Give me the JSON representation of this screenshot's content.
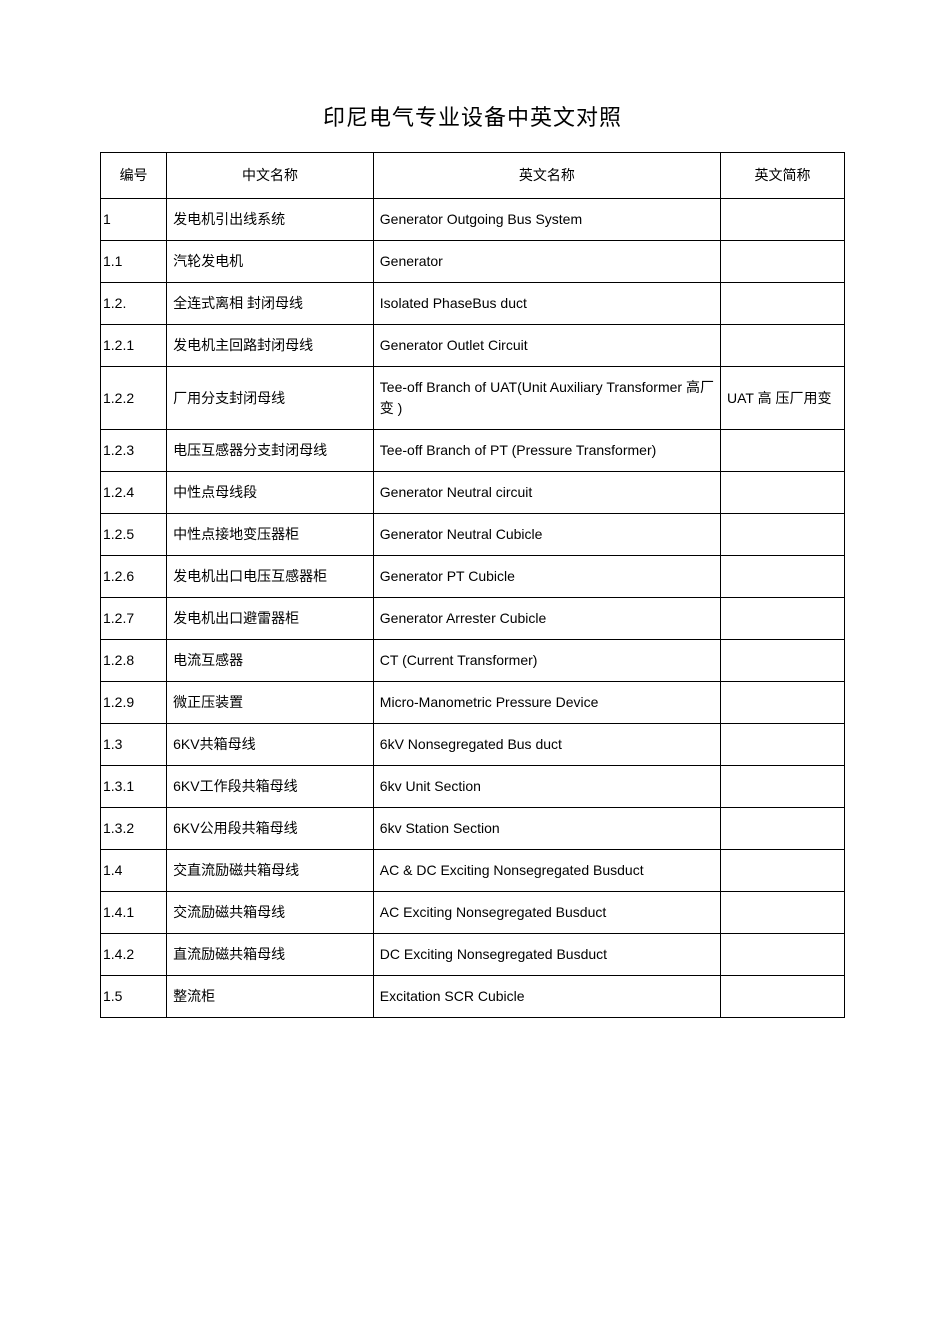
{
  "title": "印尼电气专业设备中英文对照",
  "table": {
    "columns": [
      "编号",
      "中文名称",
      "英文名称",
      "英文简称"
    ],
    "rows": [
      {
        "id": "1",
        "cn": "发电机引出线系统",
        "en": "Generator Outgoing Bus System",
        "abbr": ""
      },
      {
        "id": "1.1",
        "cn": "汽轮发电机",
        "en": "Generator",
        "abbr": ""
      },
      {
        "id": "1.2.",
        "cn": "全连式离相 封闭母线",
        "en": "Isolated PhaseBus duct",
        "abbr": ""
      },
      {
        "id": "1.2.1",
        "cn": "发电机主回路封闭母线",
        "en": "Generator Outlet Circuit",
        "abbr": ""
      },
      {
        "id": "1.2.2",
        "cn": "厂用分支封闭母线",
        "en": "Tee-off Branch of UAT(Unit Auxiliary Transformer 高厂变 )",
        "abbr": "UAT 高 压厂用变"
      },
      {
        "id": "1.2.3",
        "cn": "电压互感器分支封闭母线",
        "en": "Tee-off Branch of PT (Pressure Transformer)",
        "abbr": ""
      },
      {
        "id": "1.2.4",
        "cn": "中性点母线段",
        "en": "Generator Neutral circuit",
        "abbr": ""
      },
      {
        "id": "1.2.5",
        "cn": "中性点接地变压器柜",
        "en": "Generator Neutral Cubicle",
        "abbr": ""
      },
      {
        "id": "1.2.6",
        "cn": "发电机出口电压互感器柜",
        "en": "Generator PT Cubicle",
        "abbr": ""
      },
      {
        "id": "1.2.7",
        "cn": "发电机出口避雷器柜",
        "en": "Generator Arrester Cubicle",
        "abbr": ""
      },
      {
        "id": "1.2.8",
        "cn": "电流互感器",
        "en": "CT (Current Transformer)",
        "abbr": ""
      },
      {
        "id": "1.2.9",
        "cn": "微正压装置",
        "en": "Micro-Manometric Pressure Device",
        "abbr": ""
      },
      {
        "id": "1.3",
        "cn": "6KV共箱母线",
        "en": "6kV Nonsegregated Bus duct",
        "abbr": ""
      },
      {
        "id": "1.3.1",
        "cn": "6KV工作段共箱母线",
        "en": "6kv Unit Section",
        "abbr": ""
      },
      {
        "id": "1.3.2",
        "cn": "6KV公用段共箱母线",
        "en": "6kv Station Section",
        "abbr": ""
      },
      {
        "id": "1.4",
        "cn": "交直流励磁共箱母线",
        "en": "AC & DC Exciting Nonsegregated Busduct",
        "abbr": ""
      },
      {
        "id": "1.4.1",
        "cn": "交流励磁共箱母线",
        "en": "AC Exciting Nonsegregated Busduct",
        "abbr": ""
      },
      {
        "id": "1.4.2",
        "cn": "直流励磁共箱母线",
        "en": "DC Exciting Nonsegregated Busduct",
        "abbr": ""
      },
      {
        "id": "1.5",
        "cn": "整流柜",
        "en": "Excitation SCR Cubicle",
        "abbr": ""
      }
    ]
  },
  "styling": {
    "page_background": "#ffffff",
    "text_color": "#000000",
    "border_color": "#000000",
    "title_fontsize": 22,
    "cell_fontsize": 14,
    "column_widths": [
      "8%",
      "25%",
      "42%",
      "15%"
    ]
  }
}
